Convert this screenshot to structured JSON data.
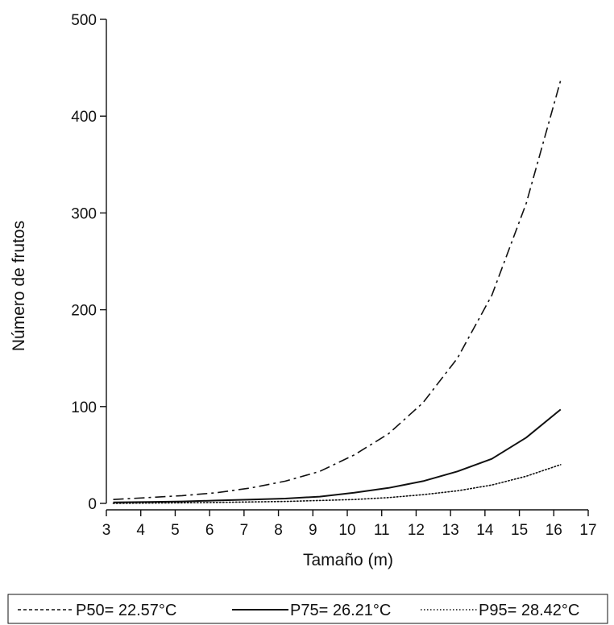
{
  "chart_data": {
    "type": "line",
    "xlabel": "Tamaño (m)",
    "ylabel": "Número de frutos",
    "xlim": [
      3,
      17
    ],
    "ylim": [
      0,
      500
    ],
    "x_ticks": [
      3,
      4,
      5,
      6,
      7,
      8,
      9,
      10,
      11,
      12,
      13,
      14,
      15,
      16,
      17
    ],
    "y_ticks": [
      0,
      100,
      200,
      300,
      400,
      500
    ],
    "grid": false,
    "legend_position": "bottom",
    "series": [
      {
        "name": "P50= 22.57°C",
        "style": "dashdot",
        "x": [
          3.2,
          4.2,
          5.2,
          6.2,
          7.2,
          8.2,
          9.2,
          10.2,
          11.2,
          12.2,
          13.2,
          14.2,
          15.2,
          16.2
        ],
        "y": [
          4,
          6,
          8,
          11,
          16,
          23,
          33,
          50,
          72,
          104,
          150,
          215,
          310,
          437
        ]
      },
      {
        "name": "P75= 26.21°C",
        "style": "solid",
        "x": [
          3.2,
          4.2,
          5.2,
          6.2,
          7.2,
          8.2,
          9.2,
          10.2,
          11.2,
          12.2,
          13.2,
          14.2,
          15.2,
          16.2
        ],
        "y": [
          1,
          1.5,
          2,
          3,
          4,
          5,
          7,
          11,
          16,
          23,
          33,
          46,
          68,
          97
        ]
      },
      {
        "name": "P95= 28.42°C",
        "style": "dotted",
        "x": [
          3.2,
          4.2,
          5.2,
          6.2,
          7.2,
          8.2,
          9.2,
          10.2,
          11.2,
          12.2,
          13.2,
          14.2,
          15.2,
          16.2
        ],
        "y": [
          0,
          0.3,
          0.6,
          1,
          1.5,
          2,
          3,
          4,
          6,
          9,
          13,
          19,
          28,
          40
        ]
      }
    ],
    "colors": {
      "line": "#111111",
      "background": "#ffffff"
    }
  }
}
